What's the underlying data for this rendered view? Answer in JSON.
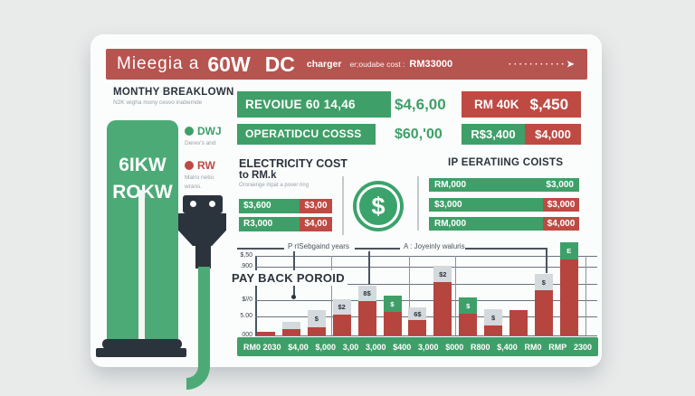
{
  "header": {
    "brand": "Mieegia a",
    "power": "60W",
    "type": "DC",
    "charger": "charger",
    "cost_label": "er;oudabe cost :",
    "cost_value": "RM33000",
    "arrow": "···········➤"
  },
  "left_panel": {
    "heading": "MONTHY BREAKLOWN",
    "subheading": "N2K wigha mony cesvo inabemde",
    "station_line1": "6IKW",
    "station_line2": "ROKW",
    "legend": [
      {
        "label": "DWJ",
        "desc": "Derev's and",
        "color": "#3f9f68"
      },
      {
        "label": "RW",
        "desc": "Malro netio wrans.",
        "color": "#bf4a43"
      }
    ]
  },
  "summary": {
    "revenue_label": "REVOIUE  60 14,46",
    "revenue_value": "$4,6,00",
    "revenue_badge_label": "RM 40K",
    "revenue_badge_value": "$,450",
    "operating_label": "OPERATIDCU COSSS",
    "operating_value": "$60,'00",
    "operating_badge_green": "R$3,400",
    "operating_badge_red": "$4,000"
  },
  "electricity": {
    "title_line1": "ELECTRICITY COST",
    "title_line2": "to RM.k",
    "note": "Ororaenge mpat a pover ring",
    "bars": [
      {
        "green_label": "$3,600",
        "red_label": "$3,00"
      },
      {
        "green_label": "R3,000",
        "red_label": "$4,00"
      }
    ]
  },
  "coin": {
    "symbol": "$"
  },
  "operating_costs": {
    "title": "IP EERATIING COISTS",
    "rows": [
      {
        "left": "RM,000",
        "right": "$3,000",
        "right_red": false
      },
      {
        "left": "$3,000",
        "right": "$3,000",
        "right_red": true
      },
      {
        "left": "RM,000",
        "right": "$4,000",
        "right_red": true
      }
    ]
  },
  "chart_data": {
    "type": "bar",
    "title": "PAY BACK POROID",
    "annotations": [
      "P rISebgaind years",
      "A : Joyeinly waluris"
    ],
    "y_ticks": [
      "$,50",
      ".900",
      "5,60",
      "$//0",
      "5.00",
      "000"
    ],
    "categories": [
      "RM0 2030",
      "$4,00",
      "$,000",
      "3,00",
      "3,000",
      "$400",
      "3,000",
      "$000",
      "R800",
      "$,400",
      "RM0",
      "RMP",
      "2300"
    ],
    "unit": "px-proportional",
    "bars": [
      {
        "value": 4,
        "cap": null,
        "cap_color": null,
        "cap_h": 0
      },
      {
        "value": 7,
        "cap": "",
        "cap_color": "gray",
        "cap_h": 8
      },
      {
        "value": 9,
        "cap": "$",
        "cap_color": "gray",
        "cap_h": 19
      },
      {
        "value": 23,
        "cap": "$2",
        "cap_color": "gray",
        "cap_h": 17
      },
      {
        "value": 38,
        "cap": "8$",
        "cap_color": "gray",
        "cap_h": 17
      },
      {
        "value": 26,
        "cap": "$",
        "cap_color": "green",
        "cap_h": 18
      },
      {
        "value": 17,
        "cap": "6$",
        "cap_color": "gray",
        "cap_h": 14
      },
      {
        "value": 59,
        "cap": "$2",
        "cap_color": "gray",
        "cap_h": 18
      },
      {
        "value": 24,
        "cap": "$",
        "cap_color": "green",
        "cap_h": 18
      },
      {
        "value": 11,
        "cap": "$",
        "cap_color": "gray",
        "cap_h": 18
      },
      {
        "value": 28,
        "cap": null,
        "cap_color": null,
        "cap_h": 0
      },
      {
        "value": 50,
        "cap": "$",
        "cap_color": "gray",
        "cap_h": 18
      },
      {
        "value": 84,
        "cap": "E",
        "cap_color": "green",
        "cap_h": 19
      }
    ],
    "legend_position": "none",
    "grid": true
  },
  "colors": {
    "green": "#3f9f68",
    "green_light": "#4caa76",
    "red": "#bf4a43",
    "header_red": "#b65450",
    "dark": "#2b333c"
  }
}
